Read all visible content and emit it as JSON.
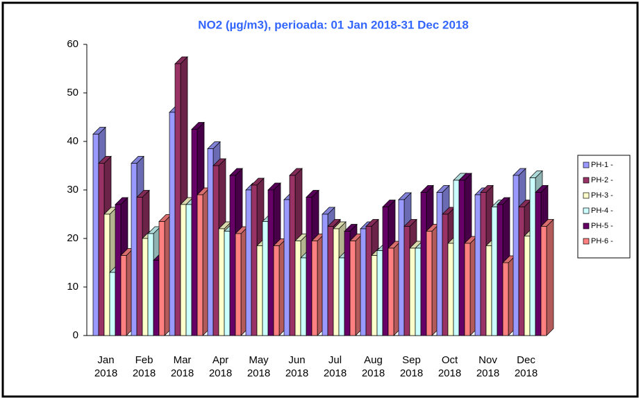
{
  "chart_data": {
    "type": "bar3d",
    "title": "NO2 (µg/m3), perioada: 01 Jan 2018-31 Dec 2018",
    "categories": [
      "Jan 2018",
      "Feb 2018",
      "Mar 2018",
      "Apr 2018",
      "May 2018",
      "Jun 2018",
      "Jul 2018",
      "Aug 2018",
      "Sep 2018",
      "Oct 2018",
      "Nov 2018",
      "Dec 2018"
    ],
    "series": [
      {
        "name": "PH-1 -",
        "color": "#9999ff",
        "values": [
          41.5,
          35.5,
          46,
          38.5,
          30,
          28,
          25,
          22,
          28,
          29.5,
          29,
          33
        ]
      },
      {
        "name": "PH-2 -",
        "color": "#993366",
        "values": [
          35.5,
          28.5,
          56,
          35,
          31,
          33,
          22.5,
          22.5,
          22.5,
          25,
          29.5,
          26.5
        ]
      },
      {
        "name": "PH-3 -",
        "color": "#ffffcc",
        "values": [
          25,
          20,
          27,
          22,
          18.5,
          19.5,
          22,
          16.5,
          18,
          19,
          18.5,
          20.5
        ]
      },
      {
        "name": "PH-4 -",
        "color": "#ccffff",
        "values": [
          13,
          21,
          27,
          21.5,
          23.5,
          16,
          16,
          17.5,
          18,
          32,
          26.5,
          32.5
        ]
      },
      {
        "name": "PH-5 -",
        "color": "#660066",
        "values": [
          27,
          15.5,
          42.5,
          33,
          30,
          28.5,
          21.5,
          26.5,
          29.5,
          32,
          27,
          29.5
        ]
      },
      {
        "name": "PH-6 -",
        "color": "#ff8080",
        "values": [
          16.5,
          23.5,
          29,
          21,
          18.5,
          19.5,
          19.5,
          18,
          21.5,
          19,
          15,
          22.5
        ]
      }
    ],
    "ylim": [
      0,
      60
    ],
    "yticks": [
      0,
      10,
      20,
      30,
      40,
      50,
      60
    ],
    "legend": "right"
  }
}
